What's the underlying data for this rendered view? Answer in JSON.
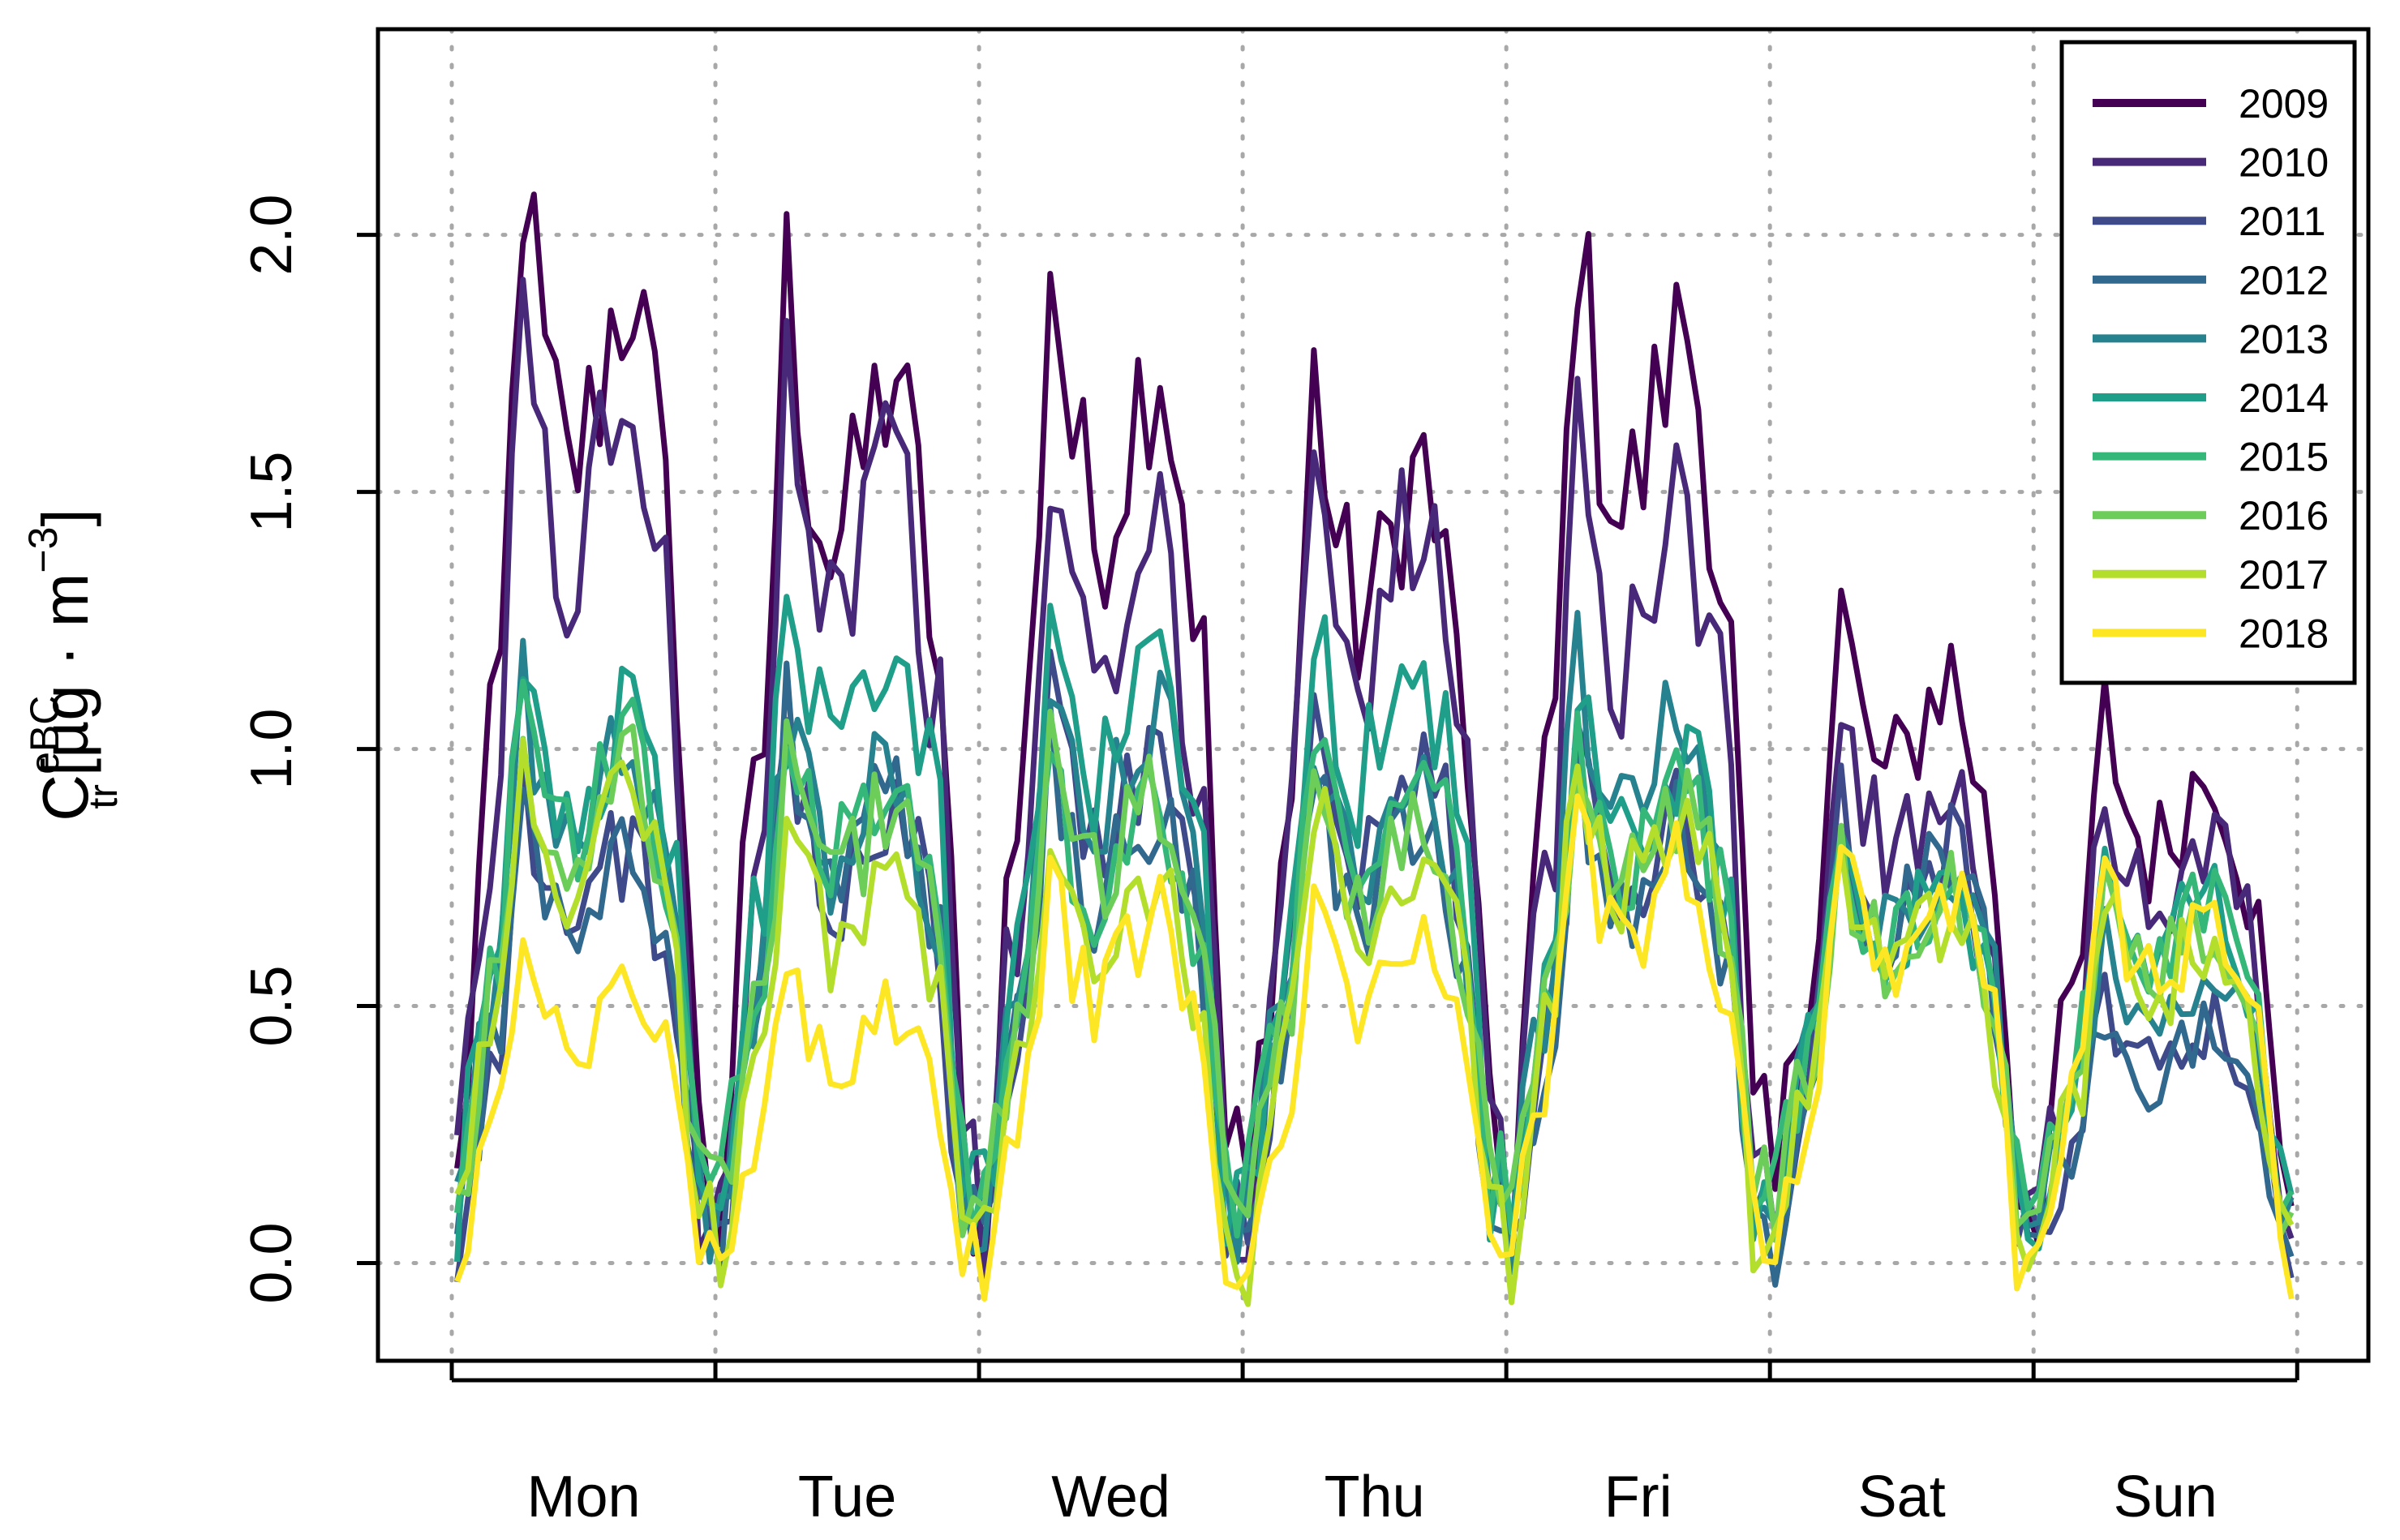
{
  "chart_data": {
    "type": "line",
    "title": "",
    "ylabel": {
      "base": "C",
      "superscript": "eBC",
      "subscript": "tr",
      "units_prefix": "[µg · m",
      "units_exponent": "−3",
      "units_suffix": "]"
    },
    "xlabel": "",
    "categories": [
      "Mon",
      "Tue",
      "Wed",
      "Thu",
      "Fri",
      "Sat",
      "Sun"
    ],
    "yticks": [
      "0.0",
      "0.5",
      "1.0",
      "1.5",
      "2.0"
    ],
    "ylim": [
      -0.19,
      2.4
    ],
    "xlim": [
      -0.28,
      7.27
    ],
    "grid": true,
    "legend_position": "top-right",
    "day_profile": [
      0.0,
      0.3,
      0.5,
      1.0,
      0.8,
      0.7,
      0.75,
      0.85,
      0.9,
      0.75,
      0.55,
      0.05
    ],
    "series": [
      {
        "name": "2009",
        "color": "#440154",
        "amp": [
          2.0,
          1.8,
          1.85,
          1.6,
          1.9,
          1.15,
          0.95
        ],
        "base": 0.12
      },
      {
        "name": "2010",
        "color": "#482878",
        "amp": [
          1.8,
          1.7,
          1.45,
          1.55,
          1.55,
          1.0,
          0.85
        ],
        "base": 0.08
      },
      {
        "name": "2011",
        "color": "#3E4A89",
        "amp": [
          0.9,
          1.0,
          1.1,
          1.1,
          0.95,
          0.9,
          0.5
        ],
        "base": 0.02
      },
      {
        "name": "2012",
        "color": "#31688E",
        "amp": [
          0.85,
          1.0,
          0.95,
          0.9,
          0.9,
          0.85,
          0.45
        ],
        "base": 0.05
      },
      {
        "name": "2013",
        "color": "#26828E",
        "amp": [
          1.05,
          1.0,
          1.1,
          1.0,
          1.1,
          0.8,
          0.55
        ],
        "base": 0.08
      },
      {
        "name": "2014",
        "color": "#1F9E89",
        "amp": [
          1.1,
          1.3,
          1.2,
          1.2,
          1.0,
          0.75,
          0.7
        ],
        "base": 0.1
      },
      {
        "name": "2015",
        "color": "#35B779",
        "amp": [
          1.0,
          0.95,
          0.85,
          0.95,
          0.9,
          0.7,
          0.65
        ],
        "base": 0.12
      },
      {
        "name": "2016",
        "color": "#6DCD59",
        "amp": [
          0.95,
          0.9,
          0.9,
          0.85,
          0.9,
          0.7,
          0.65
        ],
        "base": 0.1
      },
      {
        "name": "2017",
        "color": "#B4DE2C",
        "amp": [
          1.0,
          0.85,
          0.8,
          0.9,
          1.0,
          0.75,
          0.7
        ],
        "base": 0.02
      },
      {
        "name": "2018",
        "color": "#FDE725",
        "amp": [
          0.6,
          0.55,
          0.75,
          0.7,
          0.9,
          0.8,
          0.75
        ],
        "base": 0.0
      }
    ]
  }
}
